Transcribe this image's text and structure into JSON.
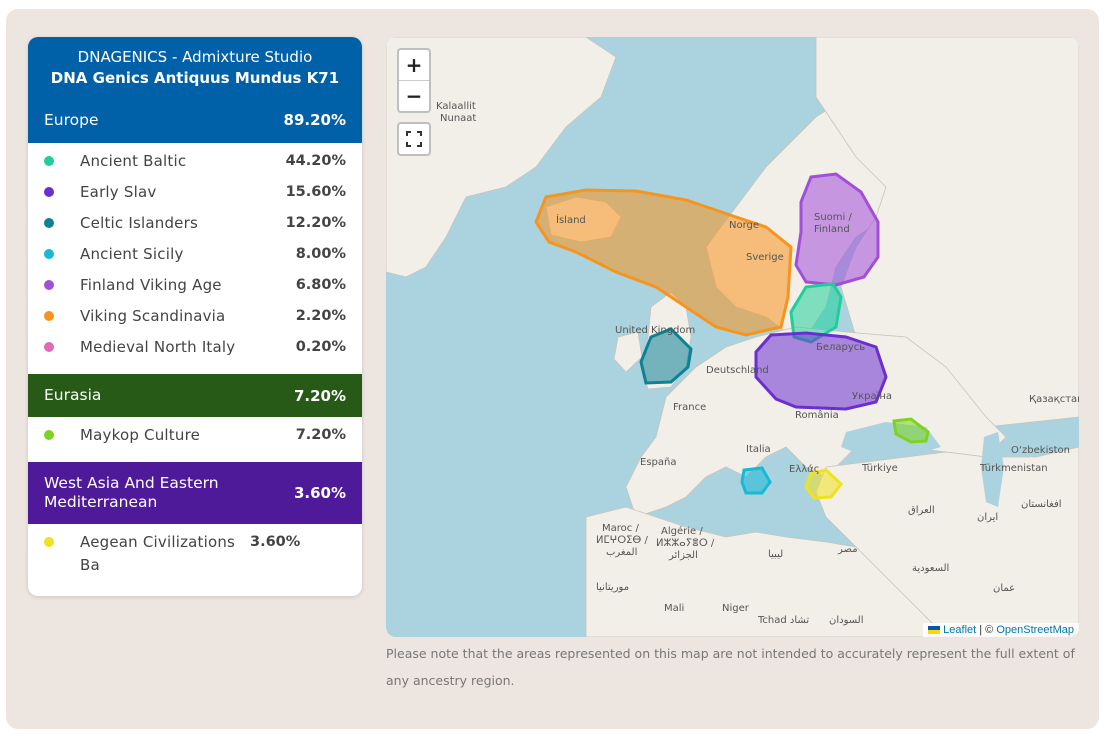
{
  "card": {
    "title": "DNAGENICS - Admixture Studio",
    "subtitle": "DNA Genics Antiquus Mundus K71"
  },
  "groups": [
    {
      "name": "Europe",
      "value": "89.20%",
      "color": "#0060a8",
      "items": [
        {
          "name": "Ancient Baltic",
          "value": "44.20%",
          "color": "#1fcf9b"
        },
        {
          "name": "Early Slav",
          "value": "15.60%",
          "color": "#6b2fd0"
        },
        {
          "name": "Celtic Islanders",
          "value": "12.20%",
          "color": "#0d8296"
        },
        {
          "name": "Ancient Sicily",
          "value": "8.00%",
          "color": "#17b9d6"
        },
        {
          "name": "Finland Viking Age",
          "value": "6.80%",
          "color": "#a24fd8"
        },
        {
          "name": "Viking Scandinavia",
          "value": "2.20%",
          "color": "#f7941d"
        },
        {
          "name": "Medieval North Italy",
          "value": "0.20%",
          "color": "#df6bb4"
        }
      ]
    },
    {
      "name": "Eurasia",
      "value": "7.20%",
      "color": "#275a17",
      "items": [
        {
          "name": "Maykop Culture",
          "value": "7.20%",
          "color": "#7ed321"
        }
      ]
    },
    {
      "name": "West Asia And Eastern Mediterranean",
      "value": "3.60%",
      "color": "#4e1a9a",
      "items": [
        {
          "name": "Aegean Civilizations Ba",
          "value": "3.60%",
          "color": "#f0e21e"
        }
      ]
    }
  ],
  "map": {
    "zoom_in": "+",
    "zoom_out": "−",
    "attribution_leaflet": "Leaflet",
    "attribution_sep": " | © ",
    "attribution_osm": "OpenStreetMap",
    "labels": {
      "kalaallit": "Kalaallit",
      "nunaat": "Nunaat",
      "island": "Ísland",
      "norge": "Norge",
      "sverige": "Sverige",
      "suomi": "Suomi /",
      "finland": "Finland",
      "uk": "United Kingdom",
      "belarus": "Беларусь",
      "deutschland": "Deutschland",
      "france": "France",
      "ukraina": "Україна",
      "romania": "România",
      "kazakhstan": "Қазақстан",
      "italia": "Italia",
      "espana": "España",
      "ellas": "Ελλάς",
      "turkiye": "Türkiye",
      "uzbekiston": "O‘zbekiston",
      "turkmenistan": "Türkmenistan",
      "maroc": "Maroc /",
      "maroc2": "ⵍⵎⵖⵔⵉⴱ /",
      "maroc3": "المغرب",
      "algerie": "Algérie /",
      "algerie2": "ⵍⵣⵣⴰⵢⴻⵔ /",
      "algerie3": "الجزائر",
      "iraq": "العراق",
      "iran": "ایران",
      "afghan": "افغانستان",
      "libya": "ليبيا",
      "misr": "مصر",
      "saudi": "السعودية",
      "mauritania": "موريتانيا",
      "mali": "Mali",
      "niger": "Niger",
      "tchad": "Tchad تشاد",
      "sudan": "السودان",
      "oman": "عمان"
    }
  },
  "note": "Please note that the areas represented on this map are not intended to accurately represent the full extent of any ancestry region."
}
